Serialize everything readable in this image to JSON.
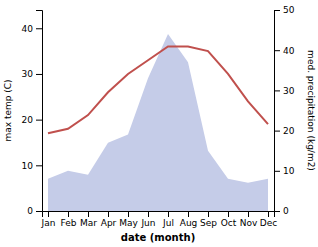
{
  "chart_data": {
    "type": "line",
    "categories": [
      "Jan",
      "Feb",
      "Mar",
      "Apr",
      "May",
      "Jun",
      "Jul",
      "Aug",
      "Sep",
      "Oct",
      "Nov",
      "Dec"
    ],
    "xlabel": "date (month)",
    "ylabel": "max temp (C)",
    "y2label": "med. precipitation (kg/m2)",
    "ylim": [
      0,
      44
    ],
    "yticks": [
      0,
      10,
      20,
      30,
      40
    ],
    "y2lim": [
      0,
      50
    ],
    "y2ticks": [
      0,
      10,
      20,
      30,
      40,
      50
    ],
    "series": [
      {
        "type": "area",
        "axis": "y2",
        "color": "#c5cce8",
        "values": [
          8,
          10,
          9,
          17,
          19,
          33,
          44,
          37,
          15,
          8,
          7,
          8
        ]
      },
      {
        "type": "line",
        "color": "#c0504d",
        "values": [
          17,
          18,
          21,
          26,
          30,
          33,
          36,
          36,
          35,
          30,
          24,
          19
        ]
      }
    ]
  }
}
